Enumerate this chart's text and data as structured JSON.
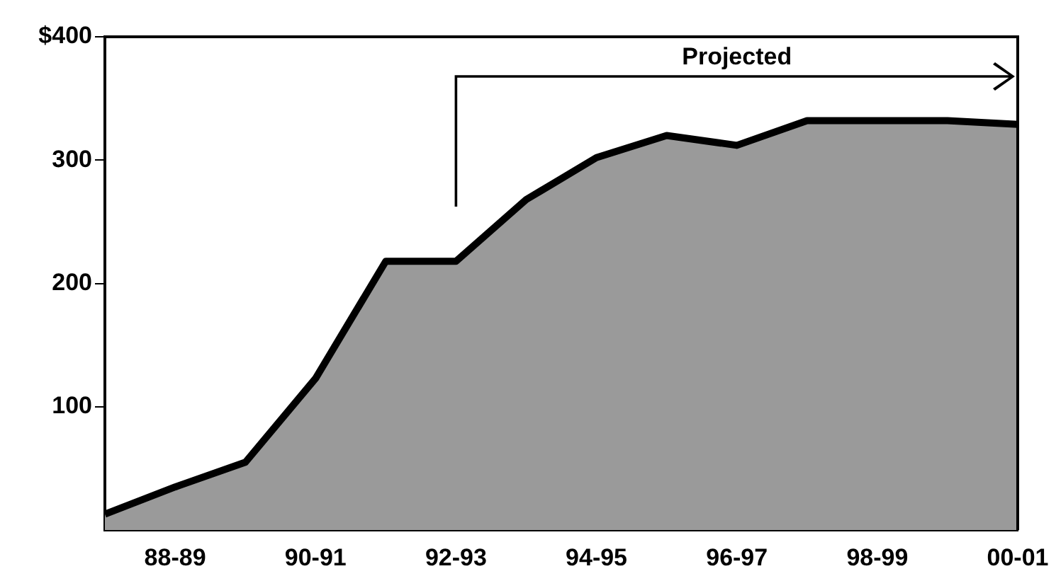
{
  "chart_data": {
    "type": "area",
    "categories": [
      null,
      "88-89",
      null,
      "90-91",
      null,
      "92-93",
      null,
      "94-95",
      null,
      "96-97",
      null,
      "98-99",
      null,
      "00-01"
    ],
    "series": [
      {
        "color": "#9a9a9a",
        "values": [
          13,
          35,
          55,
          123,
          218,
          218,
          268,
          302,
          320,
          312,
          332,
          332,
          332,
          329
        ]
      }
    ],
    "ylim": [
      0,
      400
    ],
    "yticks": [
      100,
      200,
      300,
      {
        "value": 400,
        "label": "$400"
      }
    ],
    "annotations": [
      "Projected"
    ],
    "grid": false,
    "legend": false
  }
}
